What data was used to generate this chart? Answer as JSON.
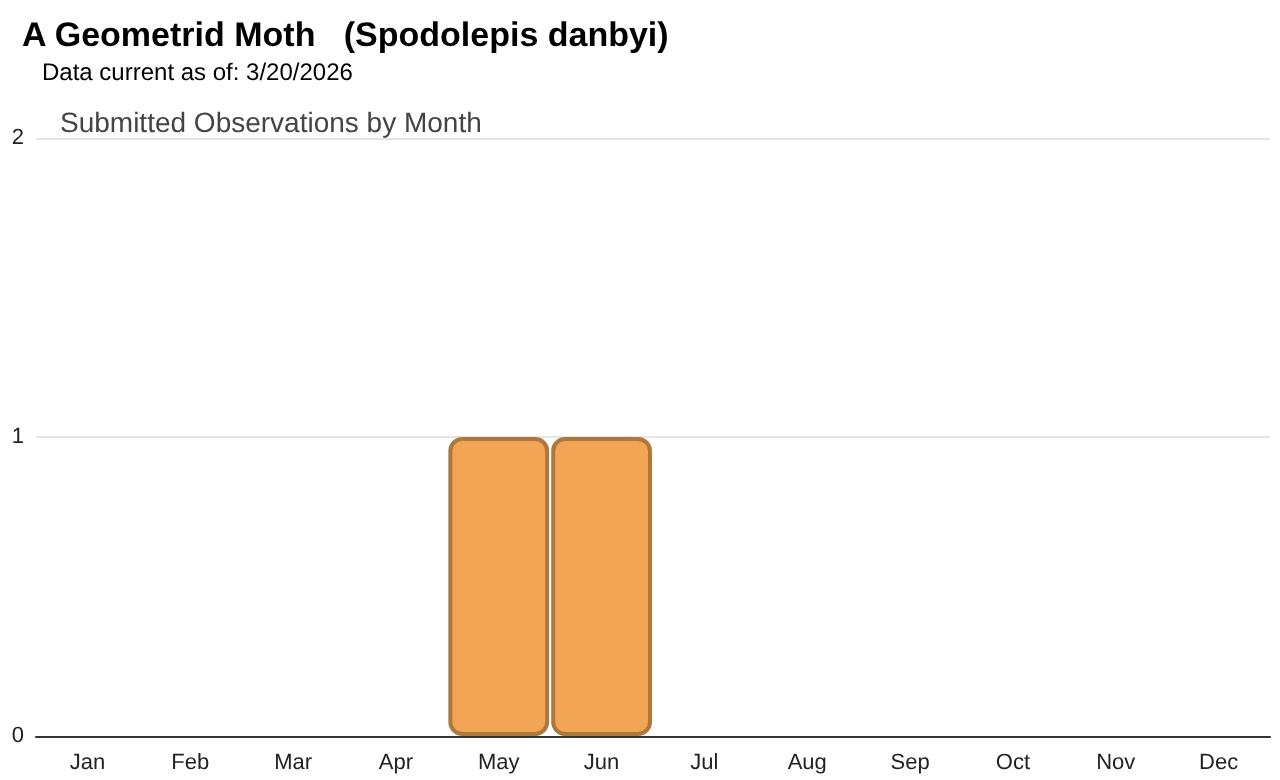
{
  "chart_data": {
    "type": "bar",
    "title": "A Geometrid Moth   (Spodolepis danbyi)",
    "subtitle": "Data current as of: 3/20/2026",
    "annotations": [
      "Submitted Observations by Month"
    ],
    "categories": [
      "Jan",
      "Feb",
      "Mar",
      "Apr",
      "May",
      "Jun",
      "Jul",
      "Aug",
      "Sep",
      "Oct",
      "Nov",
      "Dec"
    ],
    "values": [
      0,
      0,
      0,
      0,
      1,
      1,
      0,
      0,
      0,
      0,
      0,
      0
    ],
    "color": "#f2a655",
    "ylim": [
      0,
      2
    ],
    "yticks": [
      0,
      1,
      2
    ],
    "grid": "y"
  }
}
